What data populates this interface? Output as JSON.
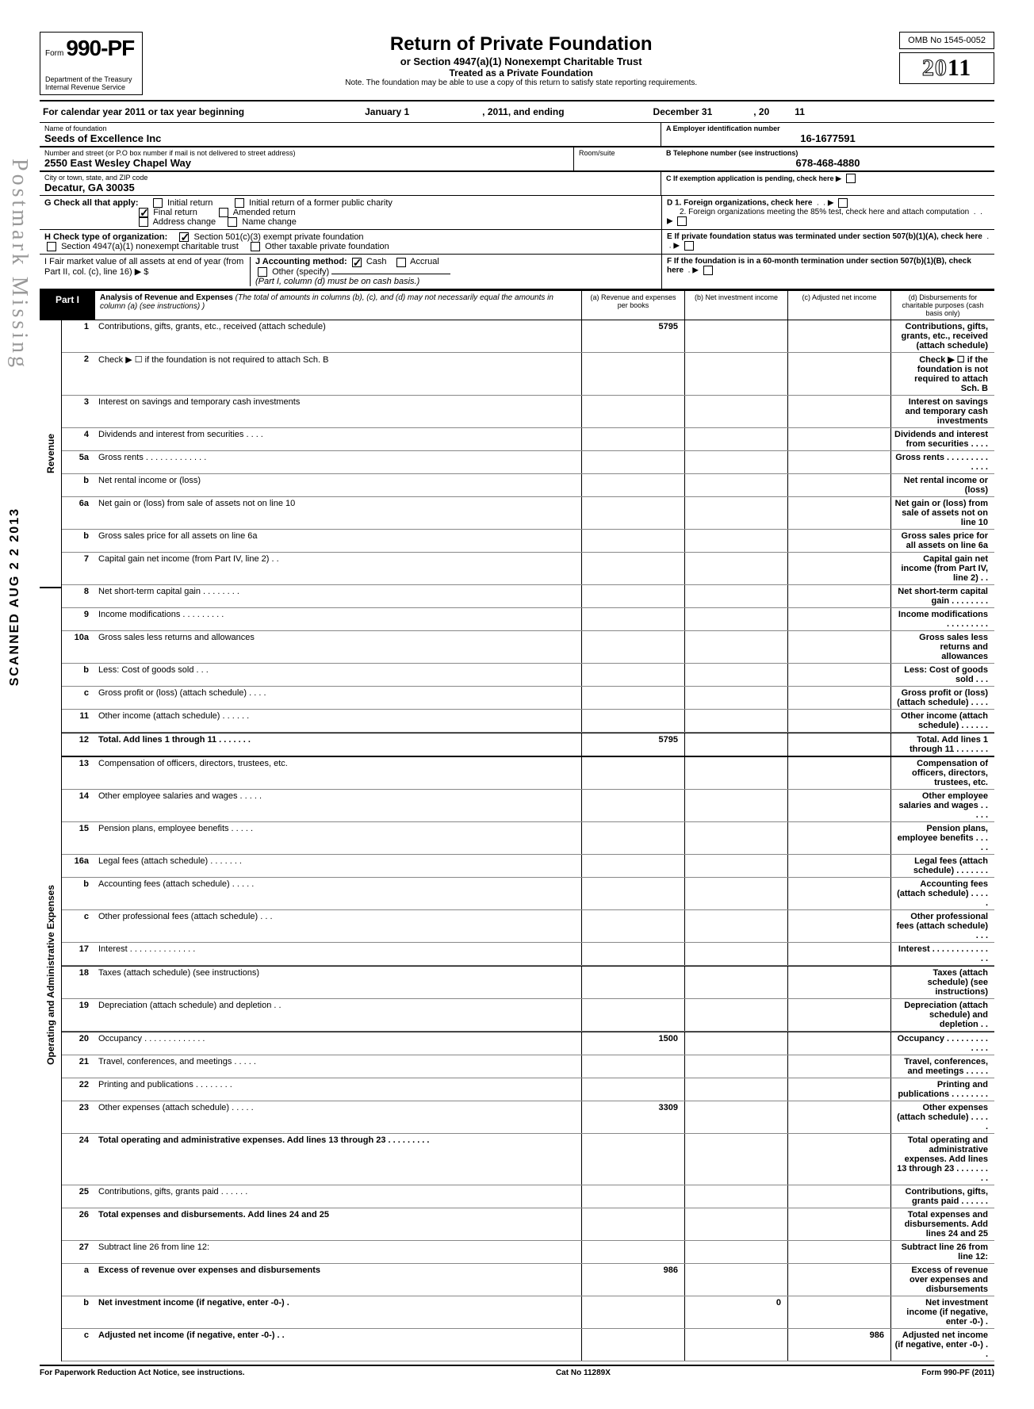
{
  "header": {
    "form_prefix": "Form",
    "form_number": "990-PF",
    "dept1": "Department of the Treasury",
    "dept2": "Internal Revenue Service",
    "title": "Return of Private Foundation",
    "subtitle1": "or Section 4947(a)(1) Nonexempt Charitable Trust",
    "subtitle2": "Treated as a Private Foundation",
    "note": "Note. The foundation may be able to use a copy of this return to satisfy state reporting requirements.",
    "omb": "OMB No 1545-0052",
    "year_outline": "20",
    "year_bold": "11"
  },
  "calendar": {
    "prefix": "For calendar year 2011 or tax year beginning",
    "begin": "January 1",
    "mid": ", 2011, and ending",
    "end_month": "December 31",
    "end_sep": ", 20",
    "end_yr": "11"
  },
  "foundation": {
    "name_label": "Name of foundation",
    "name": "Seeds of Excellence Inc",
    "addr_label": "Number and street (or P.O box number if mail is not delivered to street address)",
    "room_label": "Room/suite",
    "addr": "2550 East Wesley Chapel Way",
    "city_label": "City or town, state, and ZIP code",
    "city": "Decatur, GA 30035",
    "ein_label": "A Employer identification number",
    "ein": "16-1677591",
    "phone_label": "B Telephone number (see instructions)",
    "phone": "678-468-4880",
    "c_label": "C  If exemption application is pending, check here ▶"
  },
  "boxG": {
    "label": "G  Check all that apply:",
    "opts": [
      "Initial return",
      "Final return",
      "Address change",
      "Initial return of a former public charity",
      "Amended return",
      "Name change"
    ]
  },
  "boxD": {
    "d1": "D  1. Foreign organizations, check here",
    "d2": "2. Foreign organizations meeting the 85% test, check here and attach computation"
  },
  "boxH": {
    "label": "H  Check type of organization:",
    "opt1": "Section 501(c)(3) exempt private foundation",
    "opt2": "Section 4947(a)(1) nonexempt charitable trust",
    "opt3": "Other taxable private foundation"
  },
  "boxE": "E  If private foundation status was terminated under section 507(b)(1)(A), check here",
  "boxI": {
    "label": "I   Fair market value of all assets at end of year  (from Part II, col. (c), line 16) ▶ $",
    "j_label": "J  Accounting method:",
    "j_cash": "Cash",
    "j_accrual": "Accrual",
    "j_other": "Other (specify)",
    "j_note": "(Part I, column (d) must be on cash basis.)"
  },
  "boxF": "F  If the foundation is in a 60-month termination under section 507(b)(1)(B), check here",
  "part1": {
    "label": "Part I",
    "title": "Analysis of Revenue and Expenses",
    "desc": "(The total of amounts in columns (b), (c), and (d) may not necessarily equal the amounts in column (a) (see instructions) )",
    "col_a": "(a) Revenue and expenses per books",
    "col_b": "(b) Net investment income",
    "col_c": "(c) Adjusted net income",
    "col_d": "(d) Disbursements for charitable purposes (cash basis only)"
  },
  "sides": {
    "revenue": "Revenue",
    "expenses": "Operating and Administrative Expenses"
  },
  "lines": [
    {
      "n": "1",
      "d": "Contributions, gifts, grants, etc., received (attach schedule)",
      "a": "5795"
    },
    {
      "n": "2",
      "d": "Check ▶ ☐ if the foundation is not required to attach Sch. B"
    },
    {
      "n": "3",
      "d": "Interest on savings and temporary cash investments"
    },
    {
      "n": "4",
      "d": "Dividends and interest from securities . . . ."
    },
    {
      "n": "5a",
      "d": "Gross rents . . . . . . . . . . . . ."
    },
    {
      "n": "b",
      "d": "Net rental income or (loss)"
    },
    {
      "n": "6a",
      "d": "Net gain or (loss) from sale of assets not on line 10"
    },
    {
      "n": "b",
      "d": "Gross sales price for all assets on line 6a"
    },
    {
      "n": "7",
      "d": "Capital gain net income (from Part IV, line 2) . ."
    },
    {
      "n": "8",
      "d": "Net short-term capital gain . . . . . . . ."
    },
    {
      "n": "9",
      "d": "Income modifications   . . . . . . . . ."
    },
    {
      "n": "10a",
      "d": "Gross sales less returns and allowances"
    },
    {
      "n": "b",
      "d": "Less: Cost of goods sold   . . ."
    },
    {
      "n": "c",
      "d": "Gross profit or (loss) (attach schedule) . . . ."
    },
    {
      "n": "11",
      "d": "Other income (attach schedule)  . . . . . ."
    },
    {
      "n": "12",
      "d": "Total. Add lines 1 through 11 . . . . . . .",
      "a": "5795",
      "bold": true
    },
    {
      "n": "13",
      "d": "Compensation of officers, directors, trustees, etc."
    },
    {
      "n": "14",
      "d": "Other employee salaries and wages . . . . ."
    },
    {
      "n": "15",
      "d": "Pension plans, employee benefits   . . . . ."
    },
    {
      "n": "16a",
      "d": "Legal fees (attach schedule)    . . . . . . ."
    },
    {
      "n": "b",
      "d": "Accounting fees (attach schedule)  . . . . ."
    },
    {
      "n": "c",
      "d": "Other professional fees (attach schedule) . . ."
    },
    {
      "n": "17",
      "d": "Interest  . . . . . . . . . . . . . ."
    },
    {
      "n": "18",
      "d": "Taxes (attach schedule) (see instructions)"
    },
    {
      "n": "19",
      "d": "Depreciation (attach schedule) and depletion . ."
    },
    {
      "n": "20",
      "d": "Occupancy . . . . . . . . . . . . .",
      "a": "1500"
    },
    {
      "n": "21",
      "d": "Travel, conferences, and meetings   . . . . ."
    },
    {
      "n": "22",
      "d": "Printing and publications   . . . . . . . ."
    },
    {
      "n": "23",
      "d": "Other expenses (attach schedule)  . . . . .",
      "a": "3309"
    },
    {
      "n": "24",
      "d": "Total operating and administrative expenses. Add lines 13 through 23 . . . . . . . . .",
      "bold": true
    },
    {
      "n": "25",
      "d": "Contributions, gifts, grants paid   . . . . . ."
    },
    {
      "n": "26",
      "d": "Total expenses and disbursements. Add lines 24 and 25",
      "bold": true
    },
    {
      "n": "27",
      "d": "Subtract line 26 from line 12:"
    },
    {
      "n": "a",
      "d": "Excess of revenue over expenses and disbursements",
      "a": "986",
      "bold": true
    },
    {
      "n": "b",
      "d": "Net investment income (if negative, enter -0-)  .",
      "b": "0",
      "bold": true
    },
    {
      "n": "c",
      "d": "Adjusted net income (if negative, enter -0-) . .",
      "c": "986",
      "bold": true
    }
  ],
  "footer": {
    "left": "For Paperwork Reduction Act Notice, see instructions.",
    "mid": "Cat No 11289X",
    "right": "Form 990-PF (2011)"
  },
  "stamps": {
    "postmark": "Postmark Missing",
    "scanned": "SCANNED AUG 2 2 2013"
  }
}
